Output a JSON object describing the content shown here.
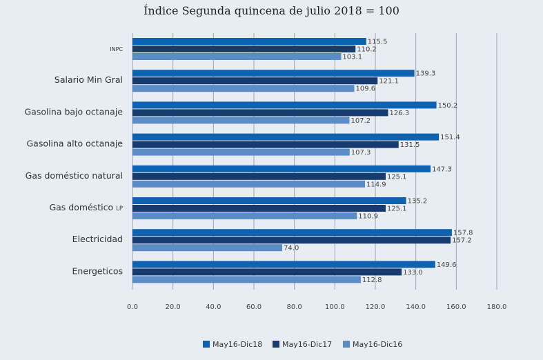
{
  "title": "Índice Segunda quincena de julio 2018 = 100",
  "chart_data": {
    "type": "bar",
    "orientation": "horizontal",
    "title": "Índice Segunda quincena de julio 2018 = 100",
    "categories": [
      "INPC",
      "Salario Min Gral",
      "Gasolina bajo octanaje",
      "Gasolina alto octanaje",
      "Gas doméstico natural",
      "Gas doméstico LP",
      "Electricidad",
      "Energeticos"
    ],
    "series": [
      {
        "name": "May16-Dic18",
        "color": "#0e62b0",
        "values": [
          115.5,
          139.3,
          150.2,
          151.4,
          147.3,
          135.2,
          157.8,
          149.6
        ],
        "labels": [
          "115.5",
          "139.3",
          "150.2",
          "151.4",
          "147.3",
          "135.2",
          "157.8",
          "149.6"
        ]
      },
      {
        "name": "May16-Dic17",
        "color": "#173b6e",
        "values": [
          110.2,
          121.1,
          126.3,
          131.5,
          125.1,
          125.1,
          157.2,
          133.0
        ],
        "labels": [
          "110.2",
          "121.1",
          "126.3",
          "131.5",
          "125.1",
          "125.1",
          "157.2",
          "133.0"
        ]
      },
      {
        "name": "May16-Dic16",
        "color": "#5b8cc6",
        "values": [
          103.1,
          109.6,
          107.2,
          107.3,
          114.9,
          110.9,
          74.0,
          112.8
        ],
        "labels": [
          "103.1",
          "109.6",
          "107.2",
          "107.3",
          "114.9",
          "110.9",
          "74.0",
          "112.8"
        ]
      }
    ],
    "xticks": [
      "0.0",
      "20.0",
      "40.0",
      "60.0",
      "80.0",
      "100.0",
      "120.0",
      "140.0",
      "160.0",
      "180.0"
    ],
    "xlim": [
      0,
      180
    ],
    "grid": true,
    "legend_position": "bottom"
  }
}
